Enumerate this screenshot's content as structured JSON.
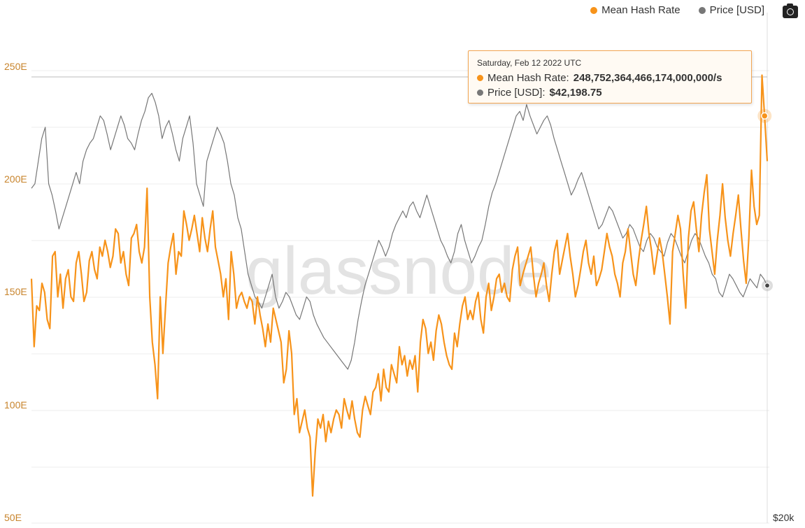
{
  "legend": {
    "hash_label": "Mean Hash Rate",
    "price_label": "Price [USD]",
    "hash_color": "#f7931a",
    "price_color": "#777777"
  },
  "toolbar": {
    "camera_icon": "camera-icon"
  },
  "watermark": "glassnode",
  "tooltip": {
    "date": "Saturday, Feb 12 2022 UTC",
    "hash_label": "Mean Hash Rate:",
    "hash_value": "248,752,364,466,174,000,000/s",
    "price_label": "Price [USD]:",
    "price_value": "$42,198.75"
  },
  "chart_data": {
    "type": "line",
    "y_left_ticks": [
      "250E",
      "200E",
      "150E",
      "100E",
      "50E"
    ],
    "y_left_range": [
      50,
      250
    ],
    "y_right_ticks": [
      "$20k"
    ],
    "series": [
      {
        "name": "Mean Hash Rate",
        "axis": "left",
        "values": [
          158,
          128,
          146,
          144,
          156,
          152,
          140,
          136,
          168,
          170,
          150,
          160,
          145,
          158,
          162,
          150,
          148,
          165,
          170,
          160,
          148,
          152,
          166,
          170,
          162,
          158,
          172,
          168,
          175,
          170,
          163,
          168,
          180,
          178,
          165,
          170,
          160,
          155,
          176,
          178,
          182,
          170,
          165,
          172,
          198,
          150,
          130,
          120,
          105,
          150,
          125,
          145,
          165,
          172,
          178,
          160,
          170,
          168,
          188,
          182,
          175,
          180,
          186,
          178,
          170,
          185,
          176,
          170,
          180,
          188,
          172,
          166,
          160,
          150,
          158,
          140,
          170,
          160,
          145,
          150,
          152,
          148,
          145,
          150,
          148,
          138,
          150,
          142,
          136,
          128,
          138,
          130,
          145,
          140,
          135,
          130,
          112,
          118,
          135,
          125,
          98,
          105,
          90,
          95,
          100,
          92,
          88,
          62,
          82,
          96,
          92,
          98,
          86,
          95,
          90,
          96,
          100,
          98,
          92,
          105,
          100,
          96,
          104,
          96,
          90,
          88,
          100,
          106,
          102,
          98,
          108,
          110,
          116,
          104,
          118,
          110,
          108,
          120,
          116,
          112,
          128,
          120,
          124,
          115,
          122,
          118,
          124,
          108,
          130,
          140,
          136,
          125,
          130,
          122,
          135,
          142,
          138,
          130,
          124,
          120,
          118,
          134,
          128,
          138,
          146,
          150,
          140,
          144,
          140,
          148,
          152,
          140,
          134,
          150,
          156,
          144,
          150,
          158,
          160,
          152,
          156,
          150,
          148,
          162,
          168,
          172,
          155,
          160,
          164,
          168,
          172,
          160,
          150,
          156,
          160,
          165,
          155,
          148,
          160,
          170,
          175,
          160,
          166,
          172,
          178,
          168,
          160,
          150,
          155,
          162,
          170,
          175,
          165,
          160,
          168,
          155,
          158,
          162,
          170,
          178,
          172,
          168,
          160,
          156,
          150,
          165,
          170,
          180,
          170,
          160,
          155,
          166,
          175,
          182,
          190,
          178,
          170,
          160,
          168,
          176,
          170,
          160,
          150,
          138,
          170,
          178,
          186,
          180,
          160,
          145,
          176,
          188,
          192,
          180,
          170,
          186,
          196,
          204,
          180,
          170,
          160,
          175,
          186,
          200,
          185,
          175,
          168,
          178,
          186,
          195,
          180,
          166,
          156,
          176,
          206,
          190,
          182,
          186,
          248,
          230,
          210
        ]
      },
      {
        "name": "Price [USD]",
        "axis": "right",
        "values": [
          198,
          200,
          210,
          220,
          225,
          200,
          195,
          188,
          180,
          185,
          190,
          195,
          200,
          205,
          200,
          210,
          215,
          218,
          220,
          225,
          230,
          228,
          222,
          215,
          220,
          225,
          230,
          226,
          220,
          218,
          215,
          222,
          228,
          232,
          238,
          240,
          236,
          230,
          220,
          225,
          228,
          222,
          215,
          210,
          220,
          225,
          230,
          218,
          200,
          195,
          190,
          210,
          215,
          220,
          225,
          222,
          218,
          210,
          200,
          195,
          185,
          180,
          170,
          160,
          155,
          150,
          148,
          145,
          150,
          155,
          160,
          150,
          145,
          148,
          152,
          150,
          146,
          142,
          140,
          145,
          150,
          148,
          142,
          138,
          135,
          132,
          130,
          128,
          126,
          124,
          122,
          120,
          118,
          122,
          130,
          140,
          148,
          155,
          160,
          165,
          170,
          175,
          172,
          168,
          172,
          178,
          182,
          185,
          188,
          185,
          190,
          192,
          188,
          185,
          190,
          195,
          190,
          185,
          180,
          175,
          172,
          168,
          165,
          170,
          178,
          182,
          175,
          170,
          165,
          168,
          172,
          175,
          182,
          190,
          196,
          200,
          205,
          210,
          215,
          220,
          225,
          230,
          232,
          228,
          235,
          230,
          226,
          222,
          225,
          228,
          230,
          226,
          220,
          215,
          210,
          205,
          200,
          195,
          198,
          202,
          205,
          200,
          195,
          190,
          185,
          180,
          182,
          186,
          190,
          188,
          184,
          180,
          176,
          178,
          182,
          180,
          176,
          172,
          170,
          175,
          178,
          176,
          172,
          170,
          168,
          174,
          178,
          176,
          172,
          168,
          165,
          170,
          175,
          178,
          176,
          172,
          168,
          165,
          160,
          158,
          152,
          150,
          155,
          160,
          158,
          155,
          152,
          150,
          154,
          158,
          156,
          154,
          160,
          158,
          155
        ]
      }
    ],
    "highlight": {
      "date": "Saturday, Feb 12 2022 UTC"
    }
  }
}
